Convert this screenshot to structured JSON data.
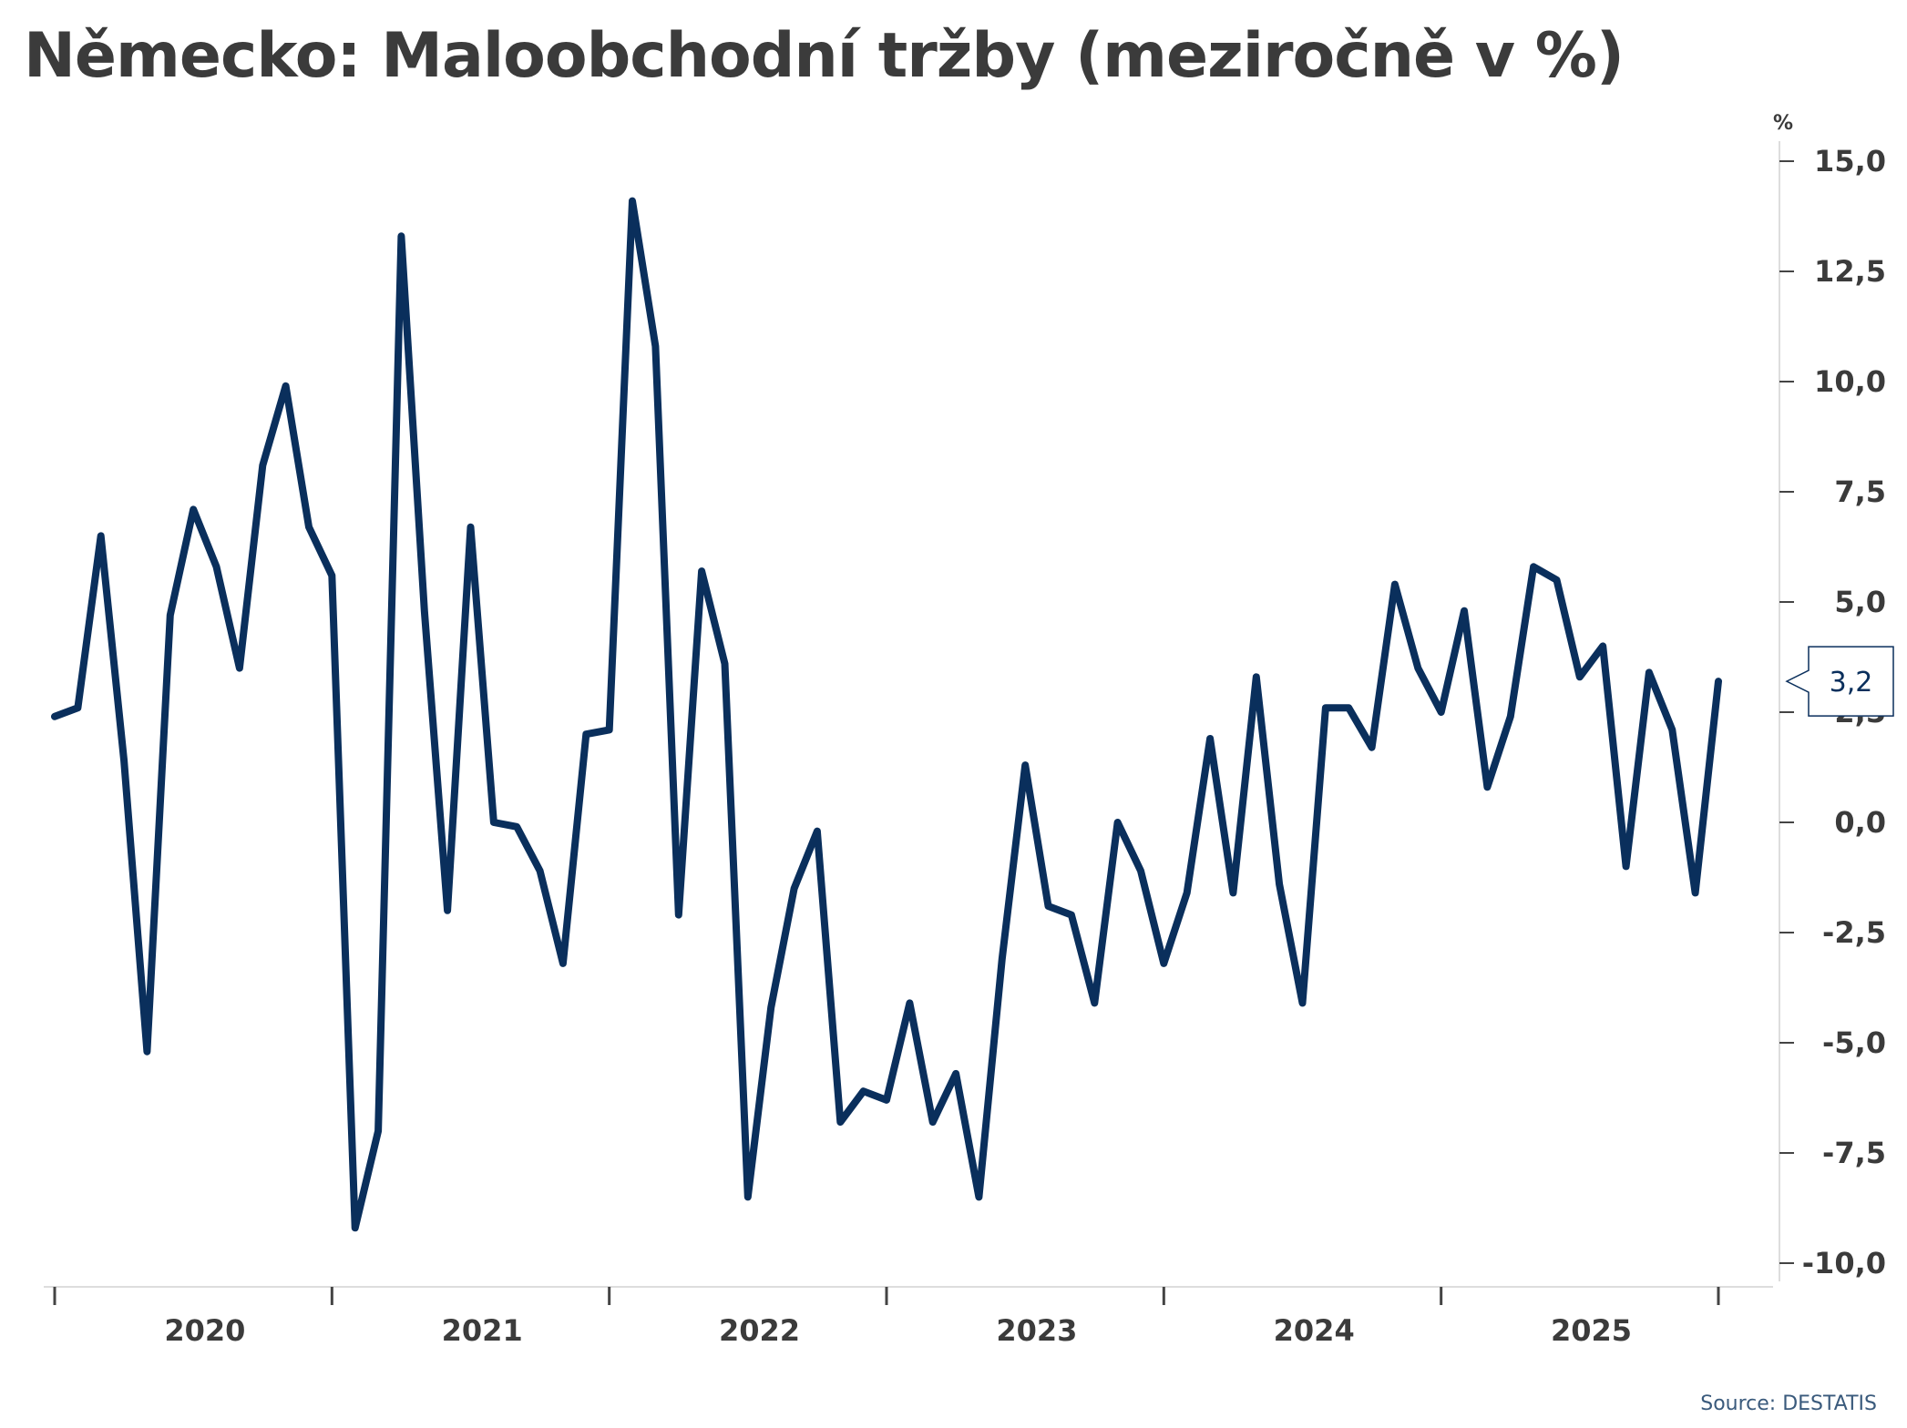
{
  "title": "Německo: Maloobchodní tržby (meziročně v %)",
  "unit": "%",
  "source": "Source: DESTATIS",
  "colors": {
    "line": "#0a2f5c",
    "axis": "#444444",
    "text": "#3b3b3b",
    "callout_border": "#0a2f5c"
  },
  "chart_data": {
    "type": "line",
    "title": "Německo: Maloobchodní tržby (meziročně v %)",
    "xlabel": "",
    "ylabel": "%",
    "ylim": [
      -10,
      15
    ],
    "y_ticks": [
      "15,0",
      "12,5",
      "10,0",
      "7,5",
      "5,0",
      "2,5",
      "0,0",
      "-2,5",
      "-5,0",
      "-7,5",
      "-10,0"
    ],
    "y_tick_values": [
      15,
      12.5,
      10,
      7.5,
      5,
      2.5,
      0,
      -2.5,
      -5,
      -7.5,
      -10
    ],
    "x_labels": [
      "2020",
      "2021",
      "2022",
      "2023",
      "2024",
      "2025"
    ],
    "start": "2019-12",
    "end": "2025-12",
    "grid": false,
    "last_value_label": "3,2",
    "series": [
      {
        "values": [
          2.4,
          2.6,
          6.5,
          1.4,
          -5.2,
          4.7,
          7.1,
          5.8,
          3.5,
          8.1,
          9.9,
          6.7,
          5.6,
          -9.2,
          -7.0,
          13.3,
          4.8,
          -2.0,
          6.7,
          0.0,
          -0.1,
          -1.1,
          -3.2,
          2.0,
          2.1,
          14.1,
          10.8,
          -2.1,
          5.7,
          3.6,
          -8.5,
          -4.2,
          -1.5,
          -0.2,
          -6.8,
          -6.1,
          -6.3,
          -4.1,
          -6.8,
          -5.7,
          -8.5,
          -3.1,
          1.3,
          -1.9,
          -2.1,
          -4.1,
          0.0,
          -1.1,
          -3.2,
          -1.6,
          1.9,
          -1.6,
          3.3,
          -1.4,
          -4.1,
          2.6,
          2.6,
          1.7,
          5.4,
          3.5,
          2.5,
          4.8,
          0.8,
          2.4,
          5.8,
          5.5,
          3.3,
          4.0,
          -1.0,
          3.4,
          2.1,
          -1.6,
          3.2
        ]
      }
    ]
  }
}
